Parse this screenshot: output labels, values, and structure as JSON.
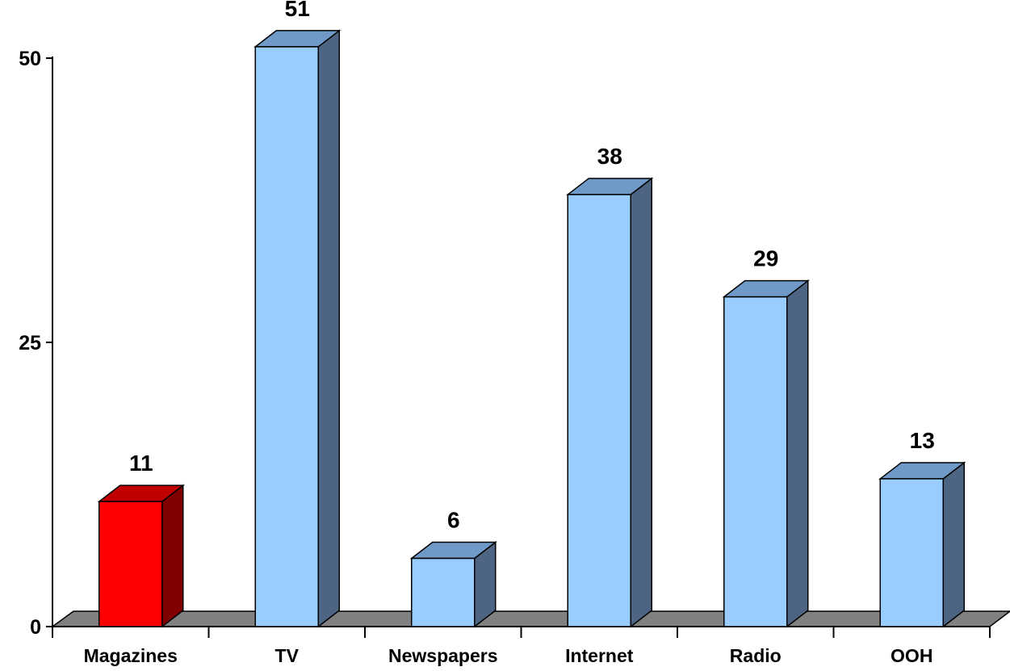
{
  "chart_data": {
    "type": "bar",
    "categories": [
      "Magazines",
      "TV",
      "Newspapers",
      "Internet",
      "Radio",
      "OOH"
    ],
    "values": [
      11,
      51,
      6,
      38,
      29,
      13
    ],
    "data_labels": [
      "11",
      "51",
      "6",
      "38",
      "29",
      "13"
    ],
    "y_ticks": [
      0,
      25,
      50
    ],
    "y_tick_labels": [
      "0",
      "25",
      "50"
    ],
    "ylim": [
      0,
      50
    ],
    "grid": false,
    "legend": "none",
    "style": "3d-column",
    "colors": {
      "highlight_front": "#ff0000",
      "highlight_top": "#c00000",
      "highlight_side": "#800000",
      "default_front": "#99ccff",
      "default_top": "#6f99c6",
      "default_side": "#4d6482",
      "floor": "#808080"
    },
    "highlight_index": 0
  }
}
